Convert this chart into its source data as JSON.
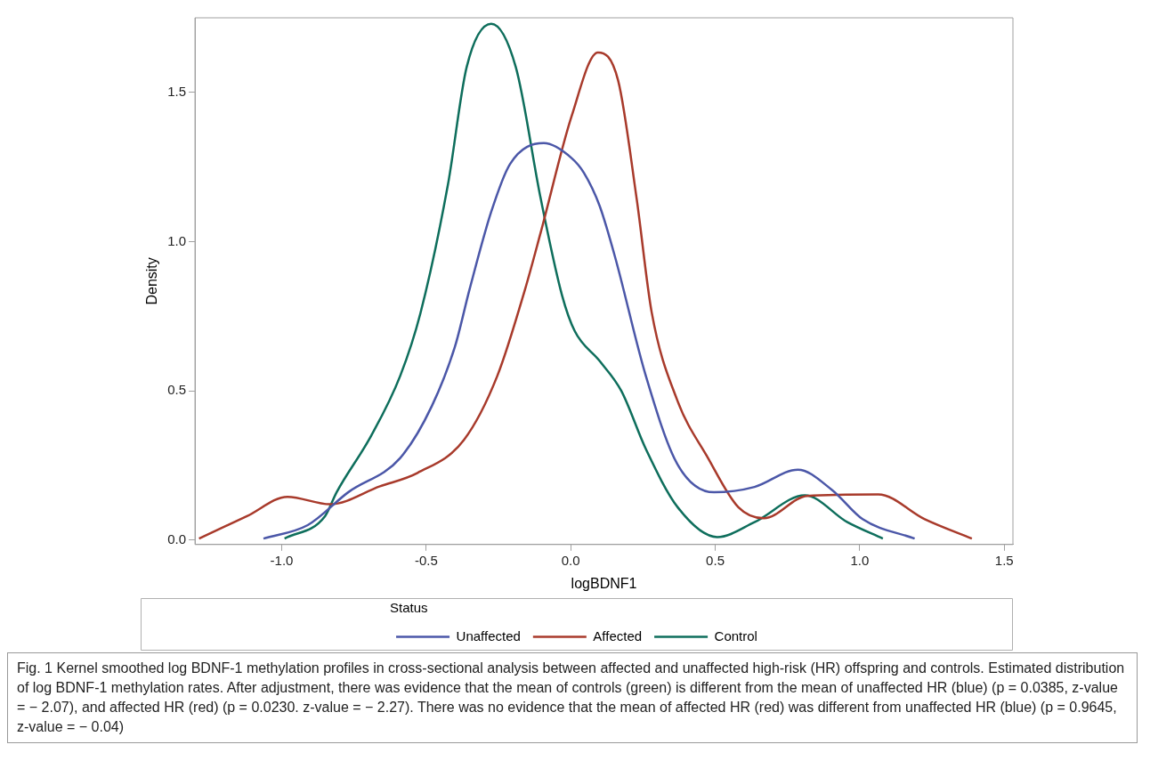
{
  "chart_data": {
    "type": "line",
    "xlabel": "logBDNF1",
    "ylabel": "Density",
    "legend_title": "Status",
    "legend": "bottom",
    "grid": false,
    "marker": "none",
    "line_style": "solid",
    "xlim": [
      -1.3,
      1.53
    ],
    "xticks": [
      {
        "value": -1,
        "label": "-1.0"
      },
      -0.5,
      {
        "value": 0,
        "label": "0.0"
      },
      0.5,
      {
        "value": 1,
        "label": "1.0"
      },
      1.5
    ],
    "ylim": [
      -0.015,
      1.75
    ],
    "yticks": [
      {
        "value": 0,
        "label": "0.0"
      },
      0.5,
      {
        "value": 1,
        "label": "1.0"
      },
      1.5
    ],
    "series": [
      {
        "name": "Unaffected",
        "color": "#4b57a8",
        "x": [
          -1.063,
          -0.91,
          -0.77,
          -0.59,
          -0.48,
          -0.4,
          -0.35,
          -0.275,
          -0.21,
          -0.093,
          0.003,
          0.046,
          0.1,
          0.153,
          0.26,
          0.368,
          0.496,
          0.636,
          0.786,
          0.904,
          1.01,
          1.19
        ],
        "values": [
          0.005,
          0.05,
          0.16,
          0.275,
          0.45,
          0.65,
          0.84,
          1.1,
          1.26,
          1.33,
          1.28,
          1.23,
          1.12,
          0.95,
          0.55,
          0.256,
          0.16,
          0.178,
          0.236,
          0.168,
          0.07,
          0.005
        ]
      },
      {
        "name": "Affected",
        "color": "#a83a2b",
        "x": [
          -1.286,
          -1.12,
          -0.98,
          -0.833,
          -0.66,
          -0.53,
          -0.37,
          -0.254,
          -0.158,
          -0.104,
          0.003,
          0.094,
          0.164,
          0.228,
          0.28,
          0.368,
          0.475,
          0.58,
          0.668,
          0.818,
          1.064,
          1.225,
          1.388
        ],
        "values": [
          0.005,
          0.08,
          0.145,
          0.12,
          0.18,
          0.225,
          0.335,
          0.55,
          0.84,
          1.03,
          1.42,
          1.634,
          1.54,
          1.145,
          0.764,
          0.47,
          0.275,
          0.11,
          0.073,
          0.148,
          0.153,
          0.07,
          0.005
        ]
      },
      {
        "name": "Control",
        "color": "#0e6e5c",
        "x": [
          -0.99,
          -0.85,
          -0.81,
          -0.69,
          -0.59,
          -0.52,
          -0.425,
          -0.36,
          -0.275,
          -0.19,
          -0.104,
          -0.03,
          0.014,
          0.1,
          0.175,
          0.26,
          0.37,
          0.507,
          0.636,
          0.81,
          0.957,
          1.08
        ],
        "values": [
          0.005,
          0.08,
          0.16,
          0.35,
          0.55,
          0.76,
          1.19,
          1.585,
          1.73,
          1.585,
          1.145,
          0.82,
          0.7,
          0.6,
          0.5,
          0.305,
          0.11,
          0.01,
          0.06,
          0.15,
          0.06,
          0.005
        ]
      }
    ],
    "annotations": [
      "Fig. 1  Kernel smoothed log BDNF-1 methylation profiles in cross-sectional analysis between affected and unaffected high-risk (HR) offspring and controls. Estimated distribution of log BDNF-1 methylation rates. After adjustment, there was evidence that the mean of controls (green) is different from the mean of unaffected HR (blue) (p = 0.0385, z-value = − 2.07), and affected HR (red) (p = 0.0230. z-value = − 2.27). There was no evidence that the mean of affected HR (red) was different from unaffected HR (blue) (p = 0.9645, z-value = − 0.04)"
    ]
  }
}
